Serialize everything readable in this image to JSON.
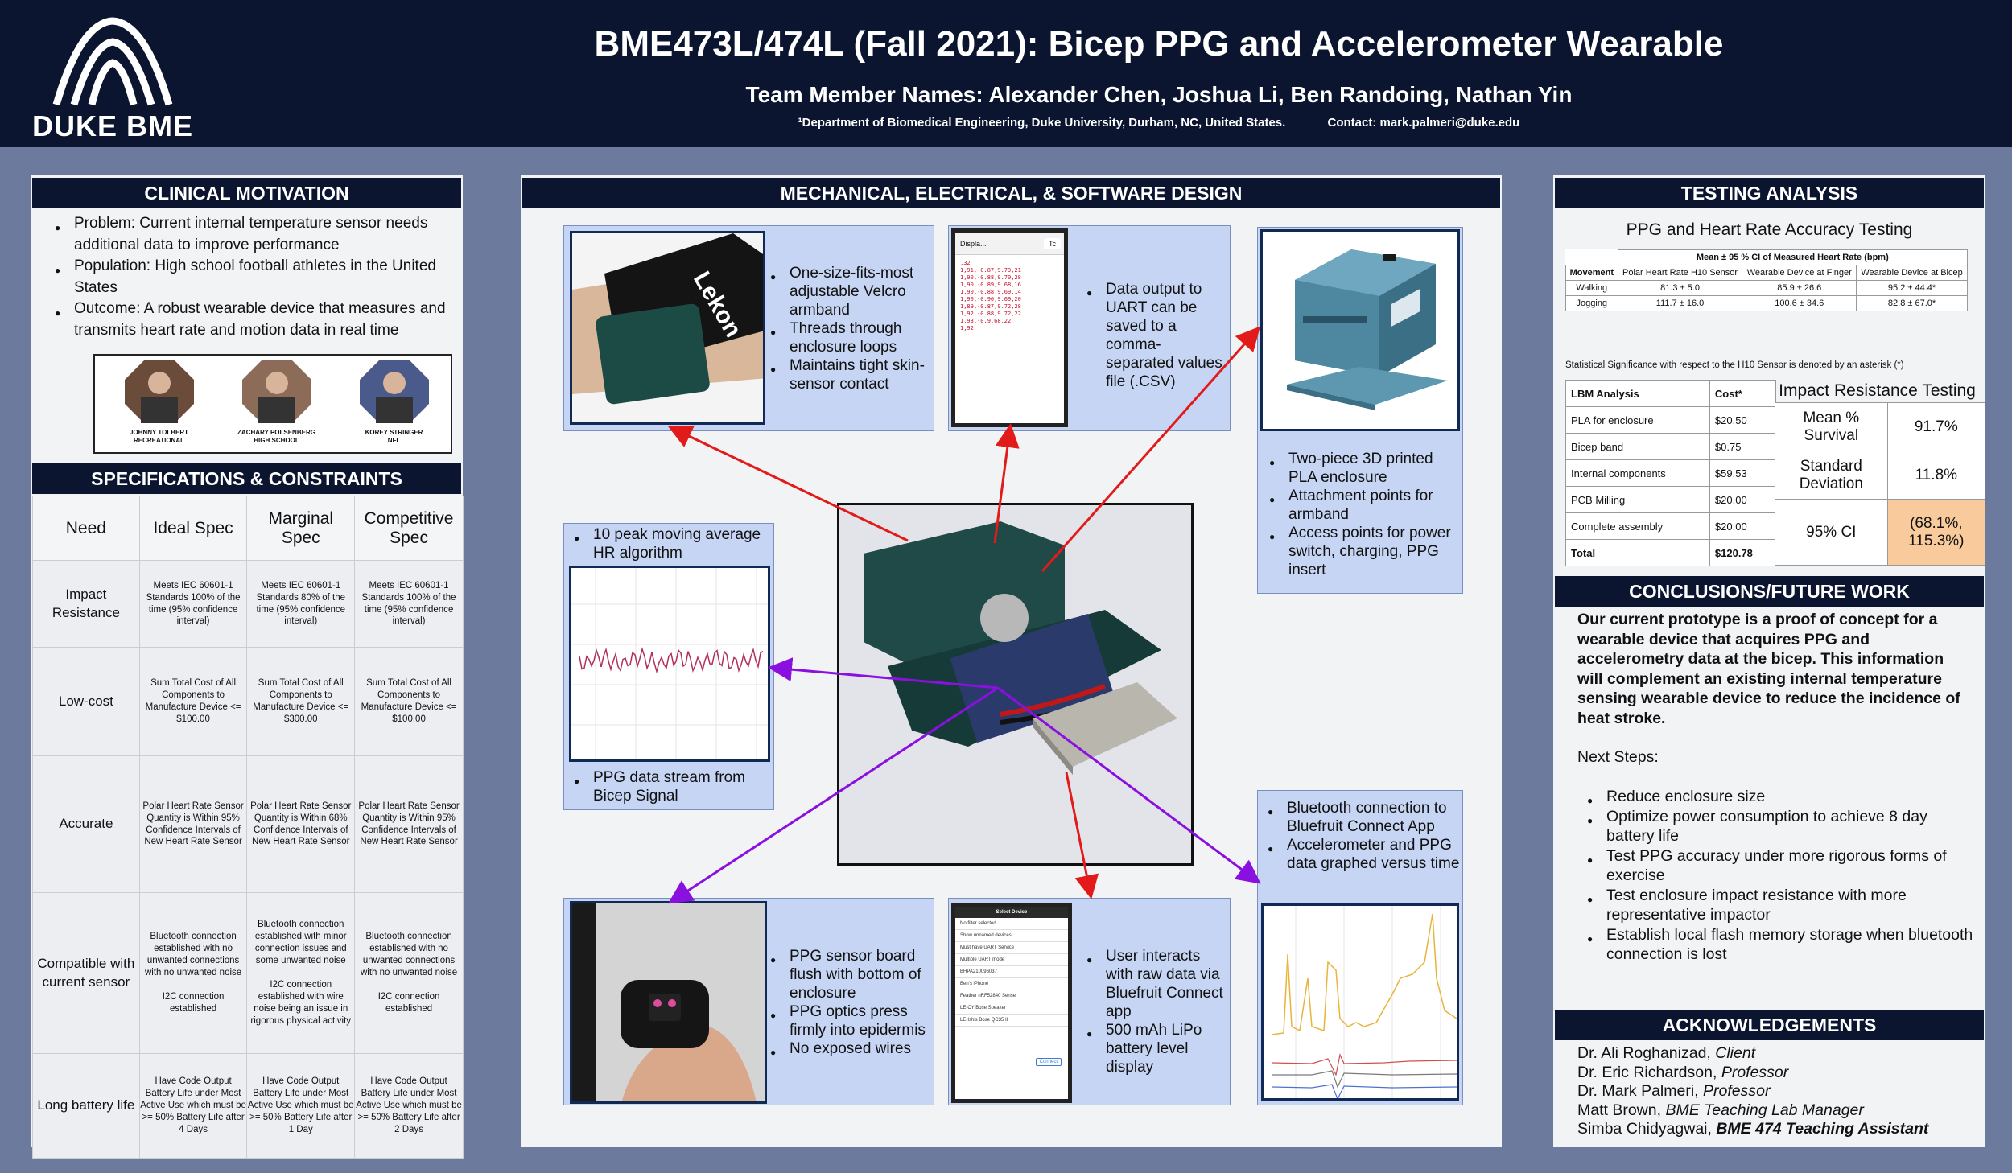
{
  "header": {
    "logo_text": "DUKE BME",
    "title": "BME473L/474L (Fall 2021): Bicep PPG and Accelerometer Wearable",
    "team_names": "Team Member Names: Alexander Chen, Joshua Li, Ben Randoing, Nathan Yin",
    "affiliation": "¹Department of Biomedical Engineering, Duke University, Durham, NC, United States.",
    "contact": "Contact:  mark.palmeri@duke.edu"
  },
  "clinical": {
    "heading": "CLINICAL MOTIVATION",
    "bullets": [
      "Problem: Current internal temperature sensor needs additional data to improve performance",
      "Population: High school football athletes in the United States",
      "Outcome: A robust wearable device that measures and transmits heart rate and motion data in real time"
    ],
    "athletes": [
      {
        "name": "JOHNNY TOLBERT",
        "level": "RECREATIONAL"
      },
      {
        "name": "ZACHARY POLSENBERG",
        "level": "HIGH SCHOOL"
      },
      {
        "name": "KOREY STRINGER",
        "level": "NFL"
      }
    ]
  },
  "specs": {
    "heading": "SPECIFICATIONS & CONSTRAINTS",
    "columns": [
      "Need",
      "Ideal Spec",
      "Marginal Spec",
      "Competitive Spec"
    ],
    "rows": [
      {
        "need": "Impact Resistance",
        "ideal": "Meets IEC 60601-1 Standards 100% of the time (95% confidence interval)",
        "marginal": "Meets IEC 60601-1 Standards 80% of the time (95% confidence interval)",
        "competitive": "Meets IEC 60601-1 Standards 100% of the time (95% confidence interval)"
      },
      {
        "need": "Low-cost",
        "ideal": "Sum Total Cost of All Components to Manufacture Device <= $100.00",
        "marginal": "Sum Total Cost of All Components to Manufacture Device <= $300.00",
        "competitive": "Sum Total Cost of All Components to Manufacture Device <= $100.00"
      },
      {
        "need": "Accurate",
        "ideal": "Polar Heart Rate Sensor Quantity is Within 95% Confidence Intervals of New Heart Rate Sensor",
        "marginal": "Polar Heart Rate Sensor Quantity is Within 68% Confidence Intervals of New Heart Rate Sensor",
        "competitive": "Polar Heart Rate Sensor Quantity is Within 95% Confidence Intervals of New Heart Rate Sensor"
      },
      {
        "need": "Compatible with current sensor",
        "ideal": "Bluetooth connection established with no unwanted connections with no unwanted noise\n\nI2C connection established",
        "marginal": "Bluetooth connection established with minor connection issues and some unwanted noise\n\nI2C connection established with wire noise being an issue in rigorous physical activity",
        "competitive": "Bluetooth connection established with no unwanted connections with no unwanted noise\n\nI2C connection established"
      },
      {
        "need": "Long battery life",
        "ideal": "Have Code Output Battery Life under Most Active Use which must be >= 50% Battery Life after 4 Days",
        "marginal": "Have Code Output Battery Life under Most Active Use which must be >= 50% Battery Life after 1 Day",
        "competitive": "Have Code Output Battery Life under Most Active Use which must be >= 50% Battery Life after 2 Days"
      }
    ]
  },
  "design": {
    "heading": "MECHANICAL, ELECTRICAL, & SOFTWARE DESIGN",
    "armband": [
      "One-size-fits-most adjustable Velcro armband",
      "Threads through enclosure loops",
      "Maintains tight skin-sensor contact"
    ],
    "csv": [
      "Data output to UART can be saved to a comma-separated values file (.CSV)"
    ],
    "csv_lines": [
      ",32",
      "1,91,-0.87,9.79,21",
      "1,90,-0.88,9.70,28",
      "1,90,-0.89,9.68,16",
      "1,90,-0.88,9.69,14",
      "1,90,-0.90,9.69,20",
      "1,89,-0.87,9.72,28",
      "1,92,-0.88,9.72,22",
      "1,93,-0.9,68,22",
      "1,92"
    ],
    "phone_tabs": [
      "Displa...",
      "Tc"
    ],
    "enclosure": [
      "Two-piece 3D printed PLA enclosure",
      "Attachment points for armband",
      "Access points for power switch, charging, PPG insert"
    ],
    "hr_algo": "10 peak moving average HR algorithm",
    "ppg_stream": "PPG data stream from Bicep Signal",
    "ble_graph": [
      "Bluetooth connection to Bluefruit Connect App",
      "Accelerometer and PPG data graphed versus time"
    ],
    "ppg_board": [
      "PPG sensor board flush with bottom of enclosure",
      "PPG optics press firmly into epidermis",
      "No exposed wires"
    ],
    "bluefruit": [
      "User interacts with raw data via Bluefruit Connect app",
      "500 mAh LiPo battery level display"
    ],
    "app_items": [
      "Select Device",
      "No filter selected",
      "Show unnamed devices",
      "Must have UART Service",
      "Multiple UART mode",
      "BHPA210096037",
      "Ben's iPhone",
      "Feather nRF52840 Sense",
      "LE-CY Bose Speaker",
      "LE-Ishis Bose QC35 II"
    ],
    "app_connect": "Connect",
    "armband_text": "Lekon"
  },
  "testing": {
    "heading": "TESTING ANALYSIS",
    "accuracy_title": "PPG and Heart Rate Accuracy Testing",
    "table_caption": "Mean ± 95 % CI of Measured Heart Rate (bpm)",
    "headers": [
      "Movement",
      "Polar Heart Rate H10 Sensor",
      "Wearable Device at Finger",
      "Wearable Device at Bicep"
    ],
    "rows": [
      [
        "Walking",
        "81.3 ± 5.0",
        "85.9 ± 26.6",
        "95.2 ± 44.4*"
      ],
      [
        "Jogging",
        "111.7 ± 16.0",
        "100.6 ± 34.6",
        "82.8 ± 67.0*"
      ]
    ],
    "note": "Statistical Significance with respect to the H10 Sensor is denoted by an asterisk (*)",
    "lbm_headers": [
      "LBM Analysis",
      "Cost*"
    ],
    "lbm_rows": [
      [
        "PLA for enclosure",
        "$20.50"
      ],
      [
        "Bicep band",
        "$0.75"
      ],
      [
        "Internal components",
        "$59.53"
      ],
      [
        "PCB Milling",
        "$20.00"
      ],
      [
        "Complete assembly",
        "$20.00"
      ],
      [
        "Total",
        "$120.78"
      ]
    ],
    "impact_title": "Impact Resistance Testing",
    "impact_rows": [
      [
        "Mean % Survival",
        "91.7%"
      ],
      [
        "Standard Deviation",
        "11.8%"
      ],
      [
        "95% CI",
        "(68.1%, 115.3%)"
      ]
    ]
  },
  "conclusions": {
    "heading": "CONCLUSIONS/FUTURE WORK",
    "text": "Our current prototype is a proof of concept for a wearable device that acquires PPG and accelerometry data at the bicep. This information will complement an existing internal temperature sensing wearable device to reduce the incidence of heat stroke.",
    "next_label": "Next Steps:",
    "next_steps": [
      "Reduce enclosure size",
      "Optimize power consumption to achieve 8 day battery life",
      "Test PPG accuracy under more rigorous forms of exercise",
      "Test enclosure impact resistance with more representative impactor",
      "Establish local flash memory storage when bluetooth connection is lost"
    ]
  },
  "ack": {
    "heading": "ACKNOWLEDGEMENTS",
    "people": [
      {
        "name": "Dr. Ali Roghanizad, ",
        "role": "Client"
      },
      {
        "name": "Dr. Eric Richardson, ",
        "role": "Professor"
      },
      {
        "name": "Dr. Mark Palmeri, ",
        "role": "Professor"
      },
      {
        "name": "Matt Brown, ",
        "role": "BME Teaching Lab Manager"
      },
      {
        "name": "Simba Chidyagwai, ",
        "role": "BME 474 Teaching Assistant"
      }
    ]
  },
  "colors": {
    "navy": "#0b1530",
    "box": "#c5d5f3",
    "red_arrow": "#e31a1a",
    "purple_arrow": "#8a10e0",
    "ci_highlight": "#f9cb9c"
  }
}
